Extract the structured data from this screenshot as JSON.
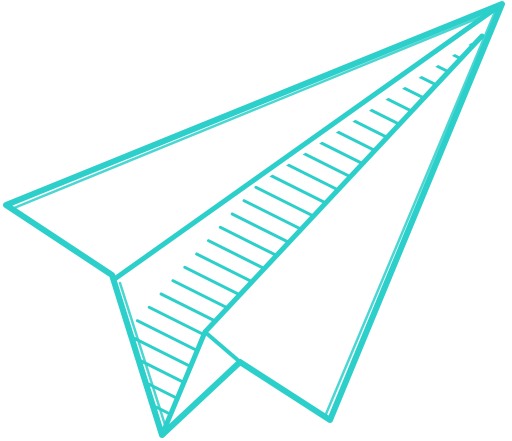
{
  "illustration": {
    "subject": "paper-plane",
    "style": "hand-drawn outline with hatched fold",
    "stroke_color": "#2ccfca",
    "background_color": "#ffffff"
  }
}
